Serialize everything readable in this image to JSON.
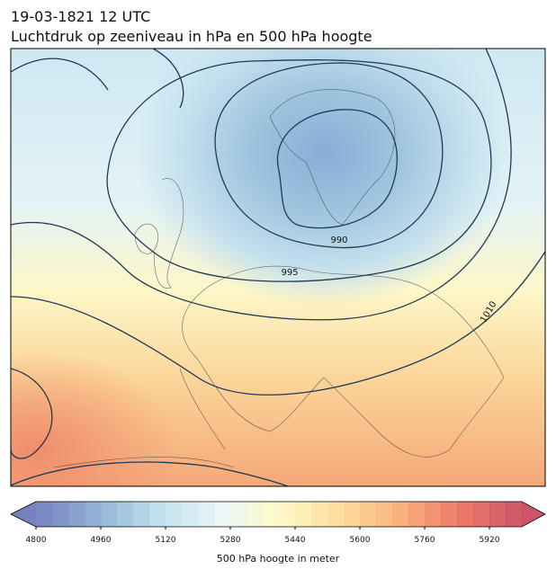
{
  "header": {
    "title": "19-03-1821 12 UTC",
    "subtitle": "Luchtdruk op zeeniveau in hPa en 500 hPa hoogte"
  },
  "map": {
    "contour_labels": [
      995,
      990,
      1010
    ]
  },
  "colorbar": {
    "label": "500 hPa hoogte in meter",
    "lim": [
      4800,
      6000
    ],
    "ticks": [
      4800,
      4960,
      5120,
      5280,
      5440,
      5600,
      5760,
      5920
    ],
    "colors": [
      "#5e6cb3",
      "#7ea5cf",
      "#b5dbea",
      "#e6f5f8",
      "#fffac0",
      "#fdd68a",
      "#f9a466",
      "#e8624c",
      "#c43a4f"
    ]
  }
}
